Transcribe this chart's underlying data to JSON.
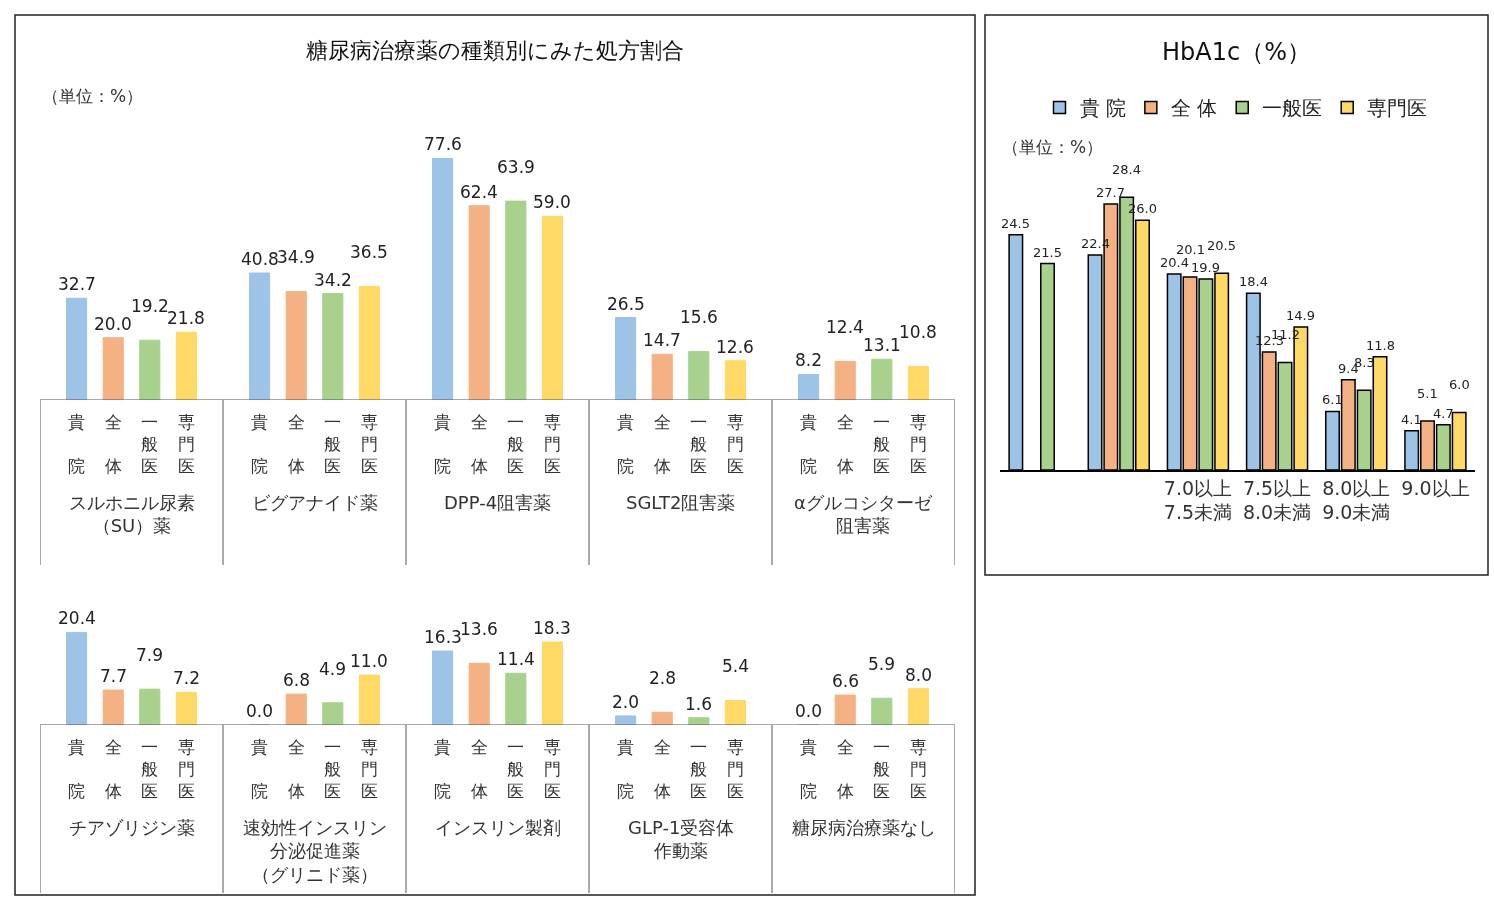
{
  "chart_data": [
    {
      "type": "bar",
      "title": "HbA1c（%）",
      "annotations": [
        "（単位：%）"
      ],
      "categories": [
        null,
        null,
        "7.0以上7.5未満",
        "7.5以上8.0未満",
        "8.0以上9.0未満",
        "9.0以上"
      ],
      "legend": "top",
      "series": [
        {
          "name": "貴 院",
          "color": "#9dc3e6",
          "values": [
            24.5,
            22.4,
            20.4,
            18.4,
            6.1,
            4.1
          ],
          "value_labels": [
            "24.5",
            "22.4",
            "20.4",
            "18.4",
            "6.1",
            "4.1"
          ]
        },
        {
          "name": "全 体",
          "color": "#f4b183",
          "values": [
            null,
            27.7,
            20.1,
            12.3,
            9.4,
            5.1
          ],
          "value_labels": [
            null,
            "27.7",
            "20.1",
            "12.3",
            "9.4",
            "5.1"
          ]
        },
        {
          "name": "一般医",
          "color": "#a9d18e",
          "values": [
            21.5,
            28.4,
            19.9,
            11.2,
            8.3,
            4.7
          ],
          "value_labels": [
            "21.5",
            "28.4",
            "19.9",
            "11.2",
            "8.3",
            "4.7"
          ]
        },
        {
          "name": "専門医",
          "color": "#ffd966",
          "values": [
            null,
            26.0,
            20.5,
            14.9,
            11.8,
            6.0
          ],
          "value_labels": [
            null,
            "26.0",
            "20.5",
            "14.9",
            "11.8",
            "6.0"
          ]
        }
      ]
    },
    {
      "type": "bar",
      "title": "糖尿病治療薬の種類別にみた処方割合",
      "annotations": [
        "（単位：%）"
      ],
      "categories": [
        "スルホニル尿素（SU）薬",
        "ビグアナイド薬",
        "DPP-4阻害薬",
        "SGLT2阻害薬",
        "αグルコシターゼ阻害薬"
      ],
      "legend": "bottom",
      "series": [
        {
          "name": "貴院",
          "color": "#9dc3e6",
          "values": [
            32.7,
            40.8,
            77.6,
            26.5,
            8.2
          ],
          "value_labels": [
            "32.7",
            "40.8",
            "77.6",
            "26.5",
            "8.2"
          ]
        },
        {
          "name": "全体",
          "color": "#f4b183",
          "values": [
            20.0,
            34.9,
            62.4,
            14.7,
            12.4
          ],
          "value_labels": [
            "20.0",
            "34.9",
            "62.4",
            "14.7",
            "12.4"
          ]
        },
        {
          "name": "一般医",
          "color": "#a9d18e",
          "values": [
            19.2,
            34.2,
            63.9,
            15.6,
            13.1
          ],
          "value_labels": [
            "19.2",
            "34.2",
            "63.9",
            "15.6",
            "13.1"
          ]
        },
        {
          "name": "専門医",
          "color": "#ffd966",
          "values": [
            21.8,
            36.5,
            59.0,
            12.6,
            10.8
          ],
          "value_labels": [
            "21.8",
            "36.5",
            "59.0",
            "12.6",
            "10.8"
          ]
        }
      ]
    },
    {
      "type": "bar",
      "categories": [
        "チアゾリジン薬",
        "速効性インスリン分泌促進薬（グリニド薬）",
        "インスリン製剤",
        "GLP-1受容体作動薬",
        "糖尿病治療薬なし"
      ],
      "legend": "bottom",
      "series": [
        {
          "name": "貴院",
          "color": "#9dc3e6",
          "values": [
            20.4,
            0.0,
            16.3,
            2.0,
            0.0
          ],
          "value_labels": [
            "20.4",
            "0.0",
            "16.3",
            "2.0",
            "0.0"
          ]
        },
        {
          "name": "全体",
          "color": "#f4b183",
          "values": [
            7.7,
            6.8,
            13.6,
            2.8,
            6.6
          ],
          "value_labels": [
            "7.7",
            "6.8",
            "13.6",
            "2.8",
            "6.6"
          ]
        },
        {
          "name": "一般医",
          "color": "#a9d18e",
          "values": [
            7.9,
            4.9,
            11.4,
            1.6,
            5.9
          ],
          "value_labels": [
            "7.9",
            "4.9",
            "11.4",
            "1.6",
            "5.9"
          ]
        },
        {
          "name": "専門医",
          "color": "#ffd966",
          "values": [
            7.2,
            11.0,
            18.3,
            5.4,
            8.0
          ],
          "value_labels": [
            "7.2",
            "11.0",
            "18.3",
            "5.4",
            "8.0"
          ]
        }
      ]
    }
  ]
}
